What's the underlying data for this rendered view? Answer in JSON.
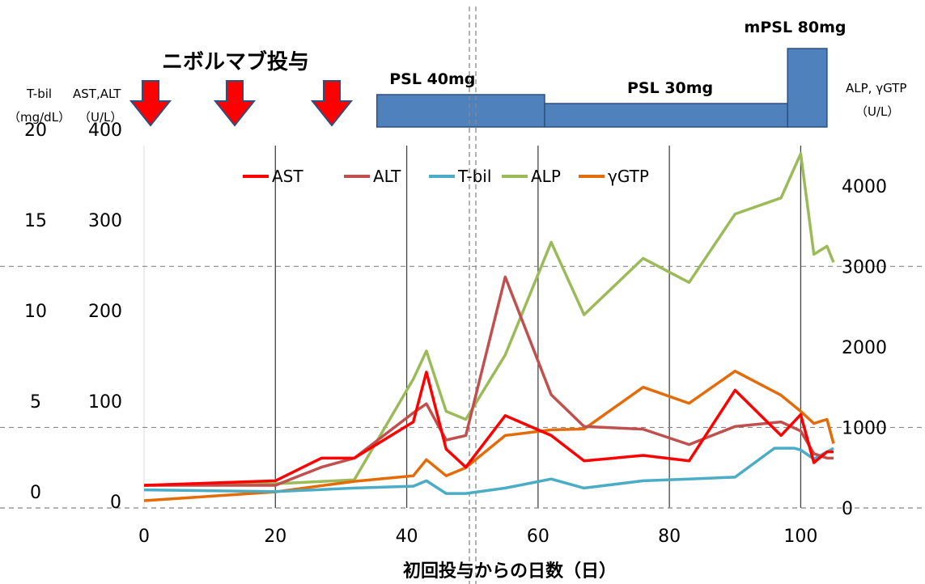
{
  "chart_data": {
    "type": "line",
    "xlabel": "初回投与からの日数（日）",
    "xlim": [
      0,
      105
    ],
    "x_ticks": [
      "0",
      "20",
      "40",
      "60",
      "80",
      "100"
    ],
    "left_axis_1": {
      "title": "T-bil",
      "units": "（mg/dL）",
      "ylim": [
        0,
        20
      ],
      "ticks": [
        "0",
        "5",
        "10",
        "15",
        "20"
      ]
    },
    "left_axis_2": {
      "title": "AST,ALT",
      "units": "（U/L）",
      "ylim": [
        0,
        400
      ],
      "ticks": [
        "100",
        "200",
        "300",
        "400"
      ]
    },
    "right_axis": {
      "title": "ALP, γGTP",
      "units": "（U/L）",
      "ylim": [
        0,
        4500
      ],
      "ticks": [
        "0",
        "1000",
        "2000",
        "3000",
        "4000"
      ]
    },
    "legend_position": "top",
    "series": [
      {
        "name": "AST",
        "color": "#ff0000",
        "axis": "ast_alt",
        "x": [
          0,
          20,
          27,
          32,
          41,
          43,
          46,
          49,
          55,
          62,
          67,
          76,
          83,
          90,
          97,
          100,
          102,
          104,
          105
        ],
        "y": [
          25,
          30,
          55,
          55,
          95,
          150,
          65,
          45,
          102,
          80,
          52,
          58,
          52,
          130,
          80,
          103,
          50,
          62,
          62
        ]
      },
      {
        "name": "ALT",
        "color": "#c0504d",
        "axis": "ast_alt",
        "x": [
          0,
          20,
          27,
          32,
          41,
          43,
          46,
          49,
          55,
          62,
          67,
          76,
          83,
          90,
          97,
          100,
          102,
          104,
          105
        ],
        "y": [
          25,
          25,
          45,
          55,
          105,
          115,
          75,
          80,
          255,
          125,
          90,
          87,
          70,
          90,
          95,
          85,
          60,
          55,
          55
        ]
      },
      {
        "name": "T-bil",
        "color": "#4bacc6",
        "axis": "tbil",
        "x": [
          0,
          20,
          32,
          41,
          43,
          46,
          49,
          55,
          62,
          67,
          76,
          83,
          90,
          96,
          99,
          100,
          102,
          104,
          105
        ],
        "y": [
          1.0,
          0.9,
          1.1,
          1.2,
          1.5,
          0.8,
          0.8,
          1.1,
          1.6,
          1.1,
          1.5,
          1.6,
          1.7,
          3.3,
          3.3,
          3.2,
          2.7,
          3.1,
          3.3
        ]
      },
      {
        "name": "ALP",
        "color": "#9bbb59",
        "axis": "alp_ggtp",
        "x": [
          0,
          20,
          32,
          41,
          43,
          46,
          49,
          55,
          62,
          67,
          76,
          83,
          90,
          97,
          100,
          102,
          104,
          105
        ],
        "y": [
          280,
          300,
          350,
          1600,
          1950,
          1200,
          1100,
          1900,
          3300,
          2400,
          3100,
          2800,
          3650,
          3850,
          4400,
          3150,
          3250,
          3050
        ]
      },
      {
        "name": "γGTP",
        "color": "#e36c09",
        "axis": "alp_ggtp",
        "x": [
          0,
          20,
          32,
          41,
          43,
          46,
          49,
          55,
          62,
          67,
          76,
          83,
          90,
          97,
          100,
          102,
          104,
          105
        ],
        "y": [
          90,
          200,
          330,
          400,
          600,
          400,
          500,
          900,
          970,
          980,
          1500,
          1300,
          1700,
          1400,
          1200,
          1050,
          1100,
          800
        ]
      }
    ],
    "annotations": {
      "drug_title": "ニボルマブ投与",
      "treatments": [
        {
          "label": "PSL 40mg",
          "start": 41,
          "end": 61,
          "level": 1
        },
        {
          "label": "PSL 30mg",
          "start": 61,
          "end": 98,
          "level": 0
        },
        {
          "label": "mPSL 80mg",
          "start": 98,
          "end": 104,
          "level": 2
        }
      ],
      "arrow_days": [
        0,
        13.5,
        27
      ],
      "vline_days": [
        50
      ]
    }
  }
}
